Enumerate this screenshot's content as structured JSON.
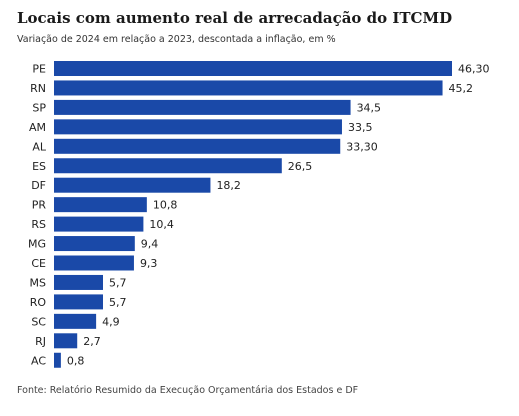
{
  "chart_data": {
    "type": "bar",
    "orientation": "horizontal",
    "title": "Locais com aumento real de arrecadação do ITCMD",
    "subtitle": "Variação de 2024 em relação a 2023, descontada a inflação, em %",
    "source": "Fonte: Relatório Resumido da Execução Orçamentária dos Estados e DF",
    "categories": [
      "PE",
      "RN",
      "SP",
      "AM",
      "AL",
      "ES",
      "DF",
      "PR",
      "RS",
      "MG",
      "CE",
      "MS",
      "RO",
      "SC",
      "RJ",
      "AC"
    ],
    "values": [
      46.3,
      45.2,
      34.5,
      33.5,
      33.3,
      26.5,
      18.2,
      10.8,
      10.4,
      9.4,
      9.3,
      5.7,
      5.7,
      4.9,
      2.7,
      0.8
    ],
    "value_labels": [
      "46,30",
      "45,2",
      "34,5",
      "33,5",
      "33,30",
      "26,5",
      "18,2",
      "10,8",
      "10,4",
      "9,4",
      "9,3",
      "5,7",
      "5,7",
      "4,9",
      "2,7",
      "0,8"
    ],
    "xlim": [
      0,
      46.3
    ],
    "grid": false,
    "bar_color": "#1a49a8"
  }
}
